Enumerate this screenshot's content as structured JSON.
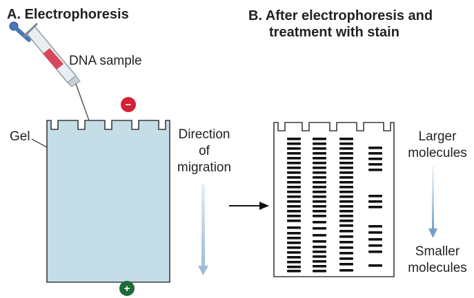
{
  "panel_a": {
    "letter": "A.",
    "title": "Electrophoresis",
    "sample_label": "DNA sample",
    "gel_label": "Gel",
    "negative_sign": "−",
    "positive_sign": "+"
  },
  "migration": {
    "line1": "Direction",
    "line2": "of",
    "line3": "migration"
  },
  "panel_b": {
    "letter": "B.",
    "title_line1": "After electrophoresis and",
    "title_line2": "treatment with stain",
    "larger_line1": "Larger",
    "larger_line2": "molecules",
    "smaller_line1": "Smaller",
    "smaller_line2": "molecules"
  },
  "colors": {
    "gel_fill": "#c5dde6",
    "gel_outline": "#3a3a3a",
    "negative": "#d32236",
    "positive": "#1e6b38",
    "arrow_blue": "#9dbcd6",
    "band": "#111111"
  }
}
